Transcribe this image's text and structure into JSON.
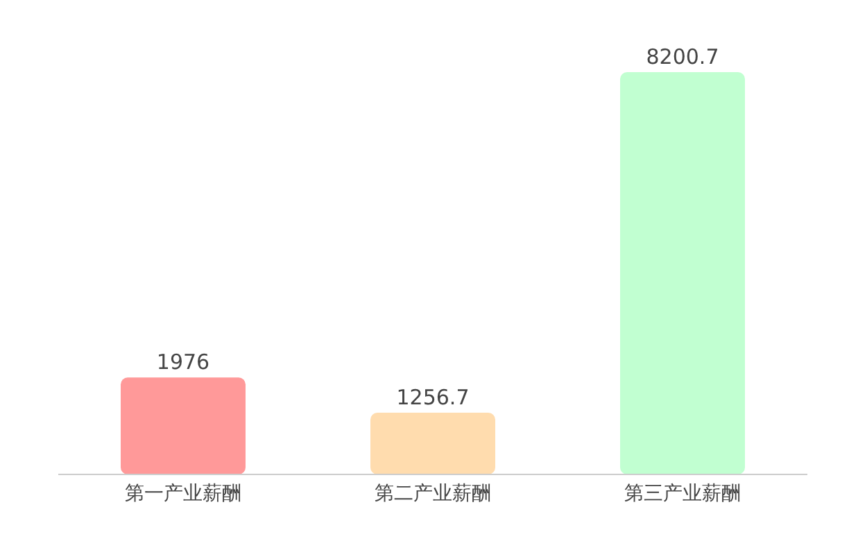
{
  "chart_data": {
    "type": "bar",
    "categories": [
      "第一产业薪酬",
      "第二产业薪酬",
      "第三产业薪酬"
    ],
    "values": [
      1976,
      1256.7,
      8200.7
    ],
    "colors": [
      "#ff9999",
      "#ffdcae",
      "#c1ffd1"
    ],
    "data_labels": true
  }
}
